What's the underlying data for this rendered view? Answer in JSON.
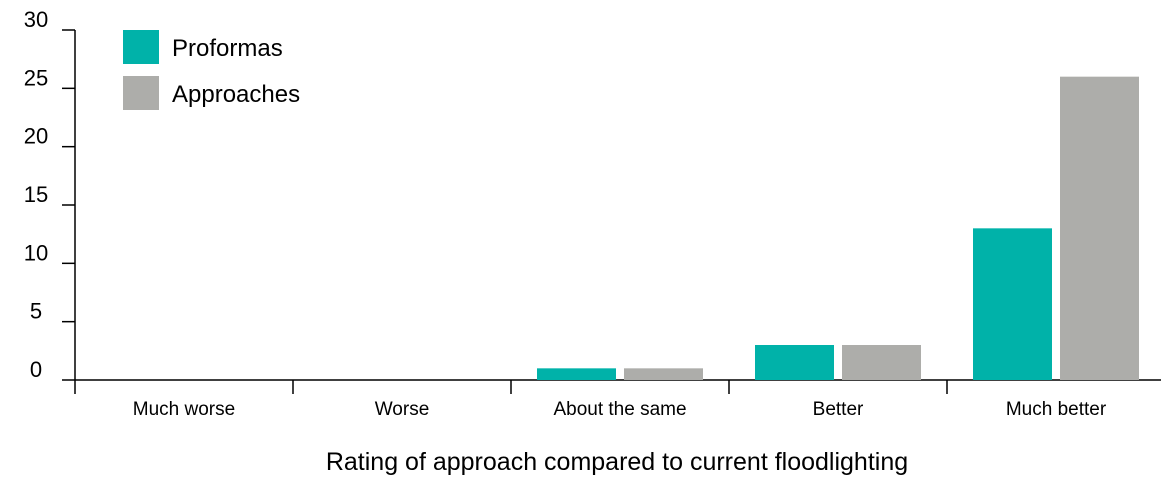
{
  "chart_data": {
    "type": "bar",
    "categories": [
      "Much worse",
      "Worse",
      "About the same",
      "Better",
      "Much better"
    ],
    "series": [
      {
        "name": "Proformas",
        "values": [
          0,
          0,
          1,
          3,
          13
        ],
        "color": "#00b2a9"
      },
      {
        "name": "Approaches",
        "values": [
          0,
          0,
          1,
          3,
          26
        ],
        "color": "#adadaa"
      }
    ],
    "title": "",
    "xlabel": "Rating of approach compared to current floodlighting",
    "ylabel": "",
    "ylim": [
      0,
      30
    ],
    "yticks": [
      0,
      5,
      10,
      15,
      20,
      25,
      30
    ],
    "grid": false,
    "legend_position": "top-left"
  }
}
